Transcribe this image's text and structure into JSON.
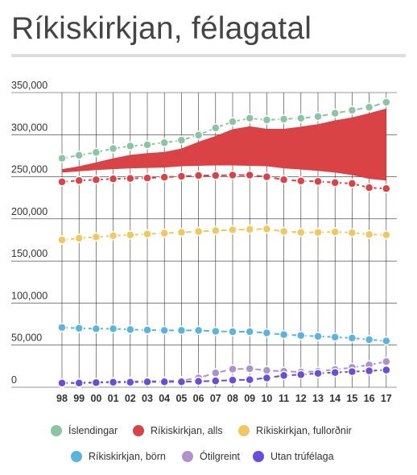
{
  "title": "Ríkiskirkjan, félagatal",
  "colors": {
    "islendingar": "#8cc5a2",
    "rikiskirkjan_alls": "#d94345",
    "fullordnir": "#f0c861",
    "born": "#5ab4e0",
    "otilgreint": "#ae93cb",
    "utan": "#6a4fd6",
    "gap_fill": "#d94345",
    "grid": "#333333"
  },
  "chart_data": {
    "type": "line",
    "title": "Ríkiskirkjan, félagatal",
    "xlabel": "",
    "ylabel": "",
    "ylim": [
      0,
      350000
    ],
    "y_ticks": [
      0,
      50000,
      100000,
      150000,
      200000,
      250000,
      300000,
      350000
    ],
    "y_tick_labels": [
      "0",
      "50,000",
      "100,000",
      "150,000",
      "200,000",
      "250,000",
      "300,000",
      "350,000"
    ],
    "categories": [
      "98",
      "99",
      "00",
      "01",
      "02",
      "03",
      "04",
      "05",
      "06",
      "07",
      "08",
      "09",
      "10",
      "11",
      "12",
      "13",
      "14",
      "15",
      "16",
      "17"
    ],
    "grid": true,
    "legend_position": "bottom",
    "series": [
      {
        "name": "Íslendingar",
        "color_key": "islendingar",
        "values": [
          272000,
          275500,
          279000,
          283500,
          286500,
          288000,
          290500,
          293500,
          299500,
          308000,
          315500,
          319500,
          317500,
          318500,
          319500,
          321500,
          325500,
          329000,
          332500,
          338500
        ]
      },
      {
        "name": "Ríkiskirkjan, alls",
        "color_key": "rikiskirkjan_alls",
        "values": [
          244000,
          245500,
          246500,
          247500,
          248000,
          248500,
          249500,
          250500,
          251500,
          251500,
          252000,
          252000,
          250000,
          246500,
          245000,
          244500,
          243000,
          242000,
          237000,
          236000
        ]
      },
      {
        "name": "Ríkiskirkjan, fullorðnir",
        "color_key": "fullordnir",
        "values": [
          175000,
          177000,
          178500,
          180000,
          181000,
          182000,
          183000,
          184000,
          185000,
          186000,
          187000,
          187500,
          188000,
          185000,
          184000,
          184000,
          184500,
          183500,
          181500,
          181000
        ]
      },
      {
        "name": "Ríkiskirkjan, börn",
        "color_key": "born",
        "values": [
          71000,
          70000,
          69500,
          69500,
          68500,
          68000,
          67500,
          67500,
          67500,
          66500,
          66000,
          66000,
          64500,
          62500,
          61500,
          60500,
          59500,
          58500,
          56500,
          55000
        ]
      },
      {
        "name": "Ótilgreint",
        "color_key": "otilgreint",
        "values": [
          5000,
          5500,
          6000,
          6500,
          7000,
          7000,
          7500,
          8000,
          11000,
          17000,
          21500,
          22000,
          20000,
          19000,
          18000,
          19000,
          21000,
          23500,
          26500,
          30500
        ]
      },
      {
        "name": "Utan trúfélaga",
        "color_key": "utan",
        "values": [
          5000,
          5000,
          5500,
          6000,
          6000,
          6500,
          6500,
          6500,
          7000,
          7500,
          8500,
          9000,
          11000,
          14000,
          15000,
          16500,
          17500,
          18500,
          19500,
          20500
        ]
      }
    ],
    "filled_gap": {
      "upper_values": [
        259000,
        262500,
        267000,
        272000,
        276000,
        278000,
        279500,
        283500,
        291500,
        298500,
        306500,
        310000,
        307000,
        307000,
        309500,
        312500,
        317000,
        320500,
        325500,
        331000
      ],
      "lower_values": [
        255000,
        256500,
        258000,
        259000,
        260000,
        260500,
        261000,
        262500,
        263000,
        263500,
        263500,
        263000,
        262500,
        260000,
        258500,
        257000,
        255000,
        252000,
        247500,
        245500
      ]
    }
  }
}
